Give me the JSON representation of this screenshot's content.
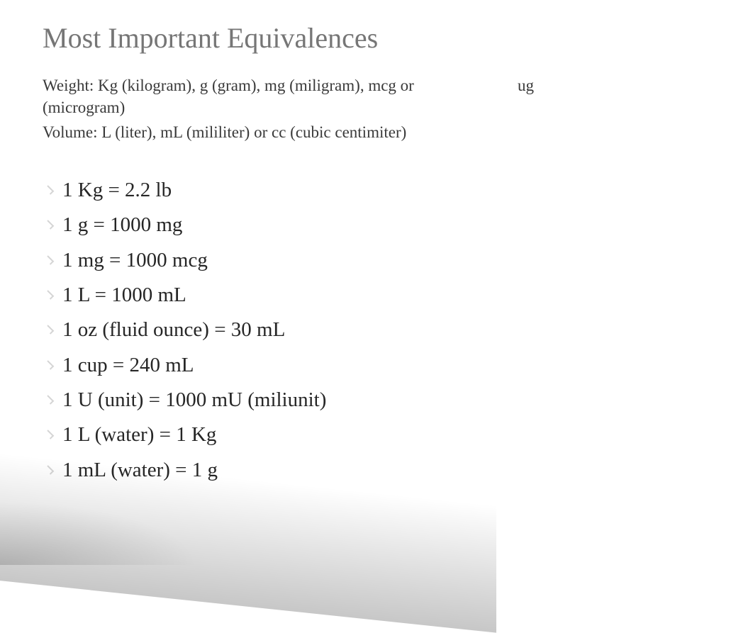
{
  "title": "Most Important Equivalences",
  "subtitle": {
    "weight_main": "Weight: Kg (kilogram), g (gram), mg (miligram), mcg or",
    "weight_ug": "ug",
    "weight_cont": "(microgram)",
    "volume": "Volume: L (liter), mL (mililiter) or cc (cubic centimiter)"
  },
  "equivalences": [
    "1 Kg = 2.2 lb",
    "1 g = 1000 mg",
    "1 mg = 1000 mcg",
    "1 L = 1000 mL",
    "1 oz (fluid ounce) = 30 mL",
    "1 cup = 240 mL",
    "1 U (unit) = 1000 mU (miliunit)",
    "1 L (water) = 1 Kg",
    "1 mL (water) = 1 g"
  ],
  "colors": {
    "title": "#767676",
    "subtitle": "#3a3a3a",
    "body": "#262626",
    "background": "#ffffff"
  },
  "fonts": {
    "family": "Times New Roman",
    "title_size": 40,
    "subtitle_size": 23,
    "body_size": 29
  }
}
